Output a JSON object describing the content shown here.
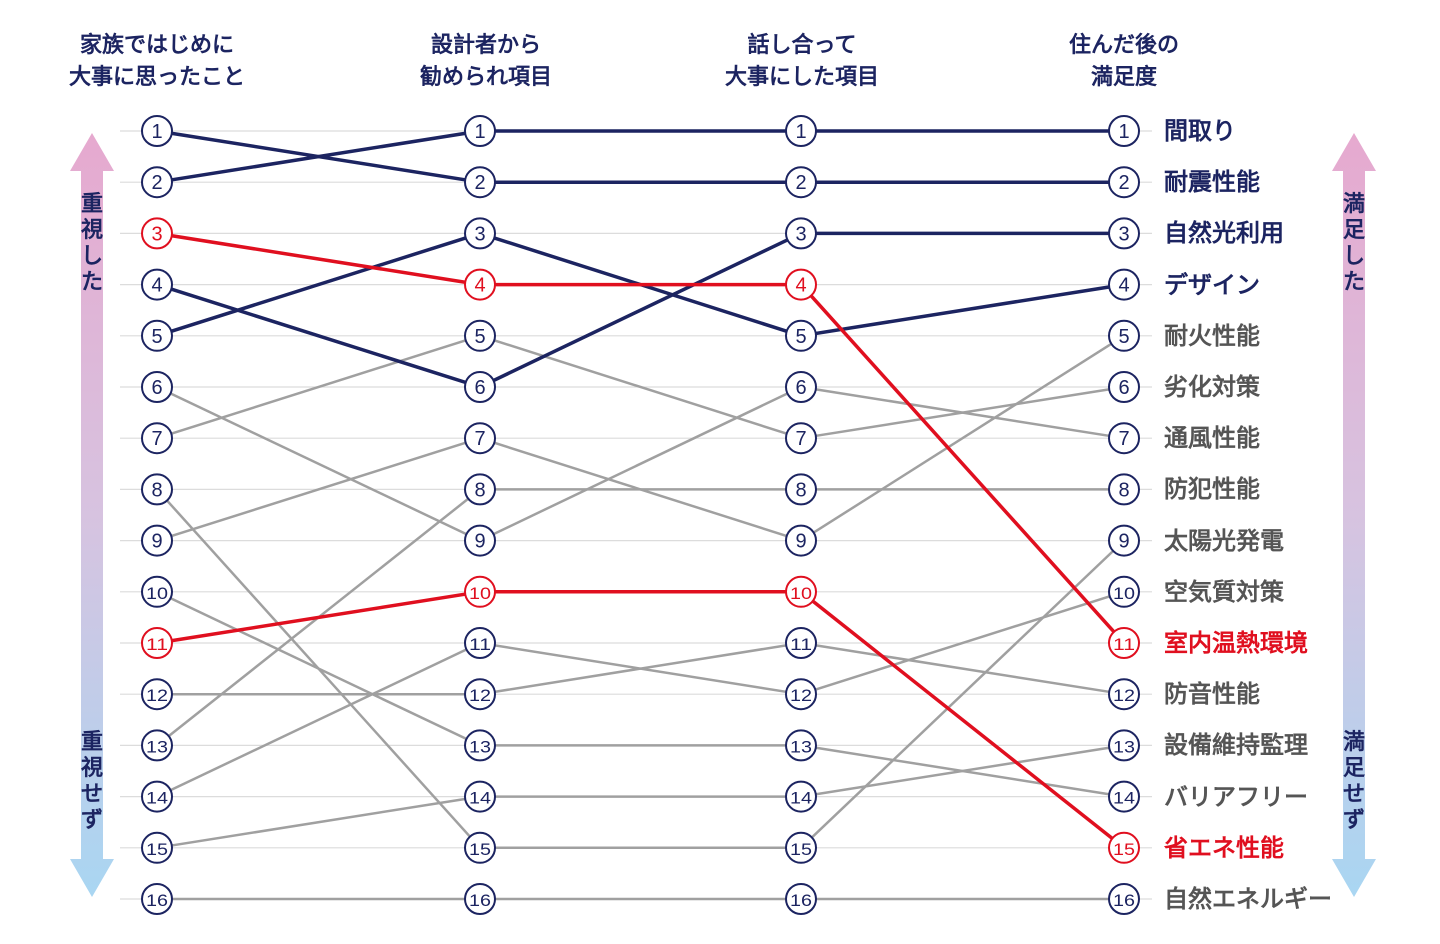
{
  "chart_data": {
    "type": "bump",
    "columns": [
      {
        "line1": "家族ではじめに",
        "line2": "大事に思ったこと"
      },
      {
        "line1": "設計者から",
        "line2": "勧められ項目"
      },
      {
        "line1": "話し合って",
        "line2": "大事にした項目"
      },
      {
        "line1": "住んだ後の",
        "line2": "満足度"
      }
    ],
    "left_axis": {
      "top": "重視した",
      "bottom": "重視せず"
    },
    "right_axis": {
      "top": "満足した",
      "bottom": "満足せず"
    },
    "colors": {
      "highlight": "#e00f1f",
      "primary": "#1c2461",
      "other": "#a0a0a0",
      "label_other": "#555555",
      "grid": "#dcdcdc"
    },
    "items": [
      {
        "label": "間取り",
        "ranks": [
          2,
          1,
          1,
          1
        ],
        "style": "primary"
      },
      {
        "label": "耐震性能",
        "ranks": [
          1,
          2,
          2,
          2
        ],
        "style": "primary"
      },
      {
        "label": "自然光利用",
        "ranks": [
          4,
          6,
          3,
          3
        ],
        "style": "primary"
      },
      {
        "label": "デザイン",
        "ranks": [
          5,
          3,
          5,
          4
        ],
        "style": "primary"
      },
      {
        "label": "耐火性能",
        "ranks": [
          9,
          7,
          9,
          5
        ],
        "style": "other"
      },
      {
        "label": "劣化対策",
        "ranks": [
          7,
          5,
          7,
          6
        ],
        "style": "other"
      },
      {
        "label": "通風性能",
        "ranks": [
          6,
          9,
          6,
          7
        ],
        "style": "other"
      },
      {
        "label": "防犯性能",
        "ranks": [
          13,
          8,
          8,
          8
        ],
        "style": "other"
      },
      {
        "label": "太陽光発電",
        "ranks": [
          8,
          15,
          15,
          9
        ],
        "style": "other"
      },
      {
        "label": "空気質対策",
        "ranks": [
          14,
          11,
          12,
          10
        ],
        "style": "other"
      },
      {
        "label": "室内温熱環境",
        "ranks": [
          3,
          4,
          4,
          11
        ],
        "style": "highlight"
      },
      {
        "label": "防音性能",
        "ranks": [
          12,
          12,
          11,
          12
        ],
        "style": "other"
      },
      {
        "label": "設備維持監理",
        "ranks": [
          15,
          14,
          14,
          13
        ],
        "style": "other"
      },
      {
        "label": "バリアフリー",
        "ranks": [
          10,
          13,
          13,
          14
        ],
        "style": "other"
      },
      {
        "label": "省エネ性能",
        "ranks": [
          11,
          10,
          10,
          15
        ],
        "style": "highlight"
      },
      {
        "label": "自然エネルギー",
        "ranks": [
          16,
          16,
          16,
          16
        ],
        "style": "other"
      }
    ]
  }
}
